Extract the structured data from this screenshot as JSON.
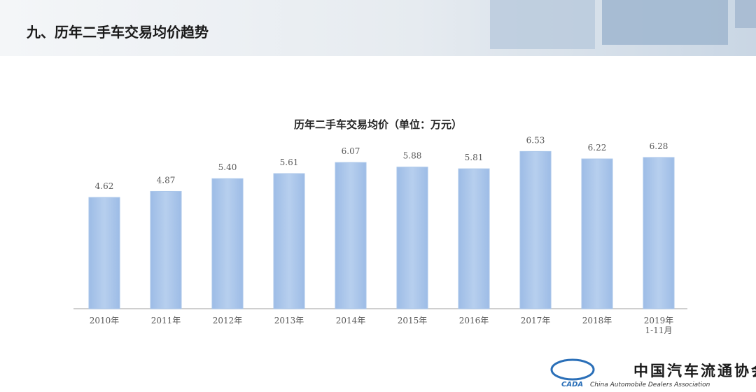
{
  "header": {
    "title": "九、历年二手车交易均价趋势"
  },
  "chart_data": {
    "type": "bar",
    "title": "历年二手车交易均价（单位：万元）",
    "categories": [
      "2010年",
      "2011年",
      "2012年",
      "2013年",
      "2014年",
      "2015年",
      "2016年",
      "2017年",
      "2018年",
      "2019年\n1-11月"
    ],
    "values": [
      4.62,
      4.87,
      5.4,
      5.61,
      6.07,
      5.88,
      5.81,
      6.53,
      6.22,
      6.28
    ],
    "value_labels": [
      "4.62",
      "4.87",
      "5.40",
      "5.61",
      "6.07",
      "5.88",
      "5.81",
      "6.53",
      "6.22",
      "6.28"
    ],
    "color": "#aac6ea"
  },
  "logo": {
    "mark": "CADA",
    "name": "中国汽车流通协会",
    "english": "China Automobile Dealers Association"
  }
}
